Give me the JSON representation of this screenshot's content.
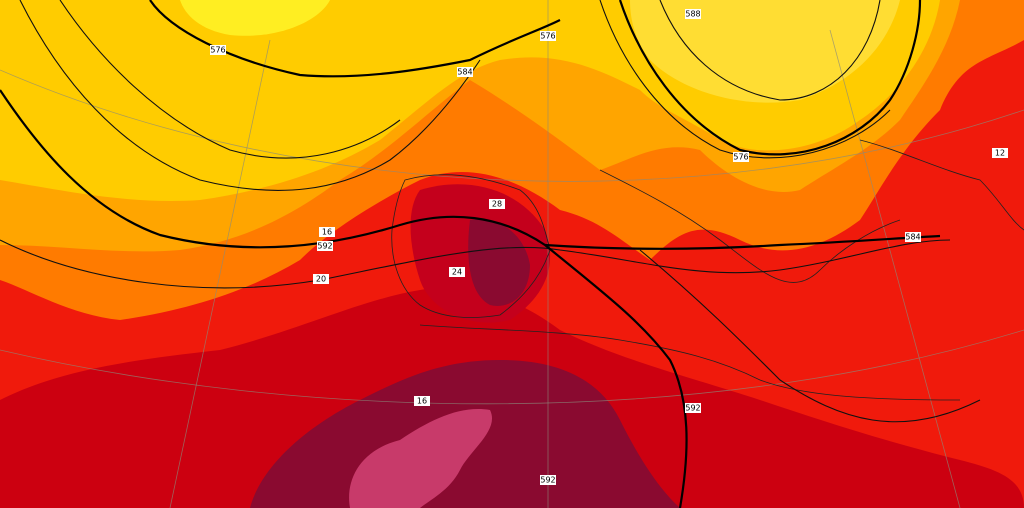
{
  "map": {
    "contour_labels": [
      "576",
      "584",
      "576",
      "588",
      "576",
      "584",
      "592",
      "592",
      "592",
      "28",
      "24",
      "16",
      "20",
      "16",
      "12"
    ]
  }
}
